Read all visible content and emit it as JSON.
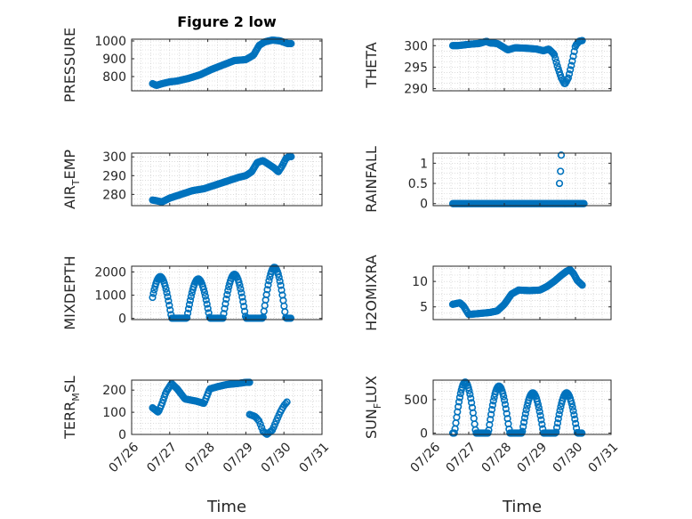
{
  "figure_title": "Figure 2 low",
  "xlabel": "Time",
  "x_tick_labels": [
    "07/26",
    "07/27",
    "07/28",
    "07/29",
    "07/30",
    "07/31"
  ],
  "colors": {
    "marker": "#0072BD",
    "grid": "#c8c8c8",
    "axis": "#262626"
  },
  "chart_data": [
    {
      "type": "scatter",
      "title": "Figure 2 low",
      "ylabel": "PRESSURE",
      "ylabel_sub": "",
      "xlim": [
        0,
        5
      ],
      "ylim": [
        720,
        1010
      ],
      "yticks": [
        800,
        900,
        1000
      ],
      "grid": true,
      "anchors": [
        [
          0.55,
          760
        ],
        [
          0.65,
          750
        ],
        [
          0.8,
          760
        ],
        [
          1.0,
          770
        ],
        [
          1.2,
          775
        ],
        [
          1.5,
          790
        ],
        [
          1.8,
          810
        ],
        [
          2.1,
          840
        ],
        [
          2.4,
          865
        ],
        [
          2.7,
          890
        ],
        [
          3.0,
          895
        ],
        [
          3.2,
          920
        ],
        [
          3.35,
          975
        ],
        [
          3.5,
          995
        ],
        [
          3.7,
          1005
        ],
        [
          3.9,
          1000
        ],
        [
          4.1,
          985
        ],
        [
          4.2,
          985
        ]
      ]
    },
    {
      "type": "scatter",
      "title": "",
      "ylabel": "THETA",
      "ylabel_sub": "",
      "xlim": [
        0,
        5
      ],
      "ylim": [
        289.5,
        301.5
      ],
      "yticks": [
        290,
        295,
        300
      ],
      "grid": true,
      "anchors": [
        [
          0.55,
          300
        ],
        [
          0.7,
          300
        ],
        [
          1.0,
          300.3
        ],
        [
          1.3,
          300.5
        ],
        [
          1.5,
          301
        ],
        [
          1.6,
          300.6
        ],
        [
          1.8,
          300.5
        ],
        [
          2.0,
          299.5
        ],
        [
          2.1,
          299
        ],
        [
          2.3,
          299.5
        ],
        [
          2.6,
          299.4
        ],
        [
          2.9,
          299.2
        ],
        [
          3.1,
          298.8
        ],
        [
          3.25,
          299.2
        ],
        [
          3.4,
          298
        ],
        [
          3.5,
          295
        ],
        [
          3.6,
          292.5
        ],
        [
          3.7,
          291
        ],
        [
          3.8,
          292.5
        ],
        [
          3.9,
          296
        ],
        [
          4.0,
          300
        ],
        [
          4.1,
          301
        ],
        [
          4.2,
          301.2
        ]
      ]
    },
    {
      "type": "scatter",
      "title": "",
      "ylabel": "AIR",
      "ylabel_sub": "T",
      "ylabel_suffix": "EMP",
      "xlim": [
        0,
        5
      ],
      "ylim": [
        274,
        302
      ],
      "yticks": [
        280,
        290,
        300
      ],
      "grid": true,
      "anchors": [
        [
          0.55,
          277
        ],
        [
          0.8,
          276
        ],
        [
          1.0,
          278
        ],
        [
          1.3,
          280
        ],
        [
          1.6,
          282
        ],
        [
          1.9,
          283
        ],
        [
          2.2,
          285
        ],
        [
          2.5,
          287
        ],
        [
          2.8,
          289
        ],
        [
          3.0,
          290
        ],
        [
          3.15,
          292
        ],
        [
          3.3,
          297
        ],
        [
          3.45,
          298
        ],
        [
          3.6,
          296
        ],
        [
          3.75,
          294
        ],
        [
          3.85,
          292
        ],
        [
          3.95,
          295
        ],
        [
          4.05,
          299
        ],
        [
          4.15,
          300.5
        ],
        [
          4.2,
          300
        ]
      ]
    },
    {
      "type": "scatter",
      "title": "",
      "ylabel": "RAINFALL",
      "ylabel_sub": "",
      "xlim": [
        0,
        5
      ],
      "ylim": [
        -0.05,
        1.25
      ],
      "yticks": [
        0,
        0.5,
        1
      ],
      "grid": true,
      "zero_range": [
        0.55,
        4.25
      ],
      "extra_points": [
        [
          3.55,
          0.5
        ],
        [
          3.58,
          0.8
        ],
        [
          3.6,
          1.2
        ]
      ]
    },
    {
      "type": "scatter",
      "title": "",
      "ylabel": "MIXDEPTH",
      "ylabel_sub": "",
      "xlim": [
        0,
        5
      ],
      "ylim": [
        -50,
        2250
      ],
      "yticks": [
        0,
        1000,
        2000
      ],
      "grid": true,
      "cycle": {
        "peaks": [
          0.75,
          1.75,
          2.7,
          3.75
        ],
        "peak_values": [
          1800,
          1700,
          1900,
          2200
        ],
        "night_value": 10
      }
    },
    {
      "type": "scatter",
      "title": "",
      "ylabel": "H2OMIXRA",
      "ylabel_sub": "",
      "xlim": [
        0,
        5
      ],
      "ylim": [
        2.5,
        13
      ],
      "yticks": [
        5,
        10
      ],
      "grid": true,
      "anchors": [
        [
          0.55,
          5.5
        ],
        [
          0.75,
          5.8
        ],
        [
          0.85,
          5.2
        ],
        [
          1.0,
          3.5
        ],
        [
          1.3,
          3.7
        ],
        [
          1.6,
          3.9
        ],
        [
          1.8,
          4.2
        ],
        [
          2.0,
          5.5
        ],
        [
          2.2,
          7.5
        ],
        [
          2.4,
          8.3
        ],
        [
          2.7,
          8.2
        ],
        [
          3.0,
          8.3
        ],
        [
          3.2,
          9.0
        ],
        [
          3.4,
          10.0
        ],
        [
          3.6,
          11.2
        ],
        [
          3.75,
          12.0
        ],
        [
          3.85,
          12.3
        ],
        [
          3.95,
          11.5
        ],
        [
          4.05,
          10.2
        ],
        [
          4.2,
          9.2
        ]
      ]
    },
    {
      "type": "scatter",
      "title": "",
      "ylabel": "TERR",
      "ylabel_sub": "M",
      "ylabel_suffix": "SL",
      "xlim": [
        0,
        5
      ],
      "ylim": [
        0,
        245
      ],
      "yticks": [
        0,
        100,
        200
      ],
      "grid": true,
      "anchors": [
        [
          0.55,
          120
        ],
        [
          0.7,
          100
        ],
        [
          0.8,
          140
        ],
        [
          0.9,
          190
        ],
        [
          1.05,
          230
        ],
        [
          1.2,
          205
        ],
        [
          1.4,
          160
        ],
        [
          1.7,
          150
        ],
        [
          1.9,
          140
        ],
        [
          2.05,
          205
        ],
        [
          2.25,
          215
        ],
        [
          2.5,
          225
        ],
        [
          2.8,
          230
        ],
        [
          3.0,
          235
        ],
        [
          3.1,
          235
        ]
      ],
      "anchors2": [
        [
          3.1,
          90
        ],
        [
          3.25,
          80
        ],
        [
          3.35,
          60
        ],
        [
          3.45,
          15
        ],
        [
          3.55,
          0
        ],
        [
          3.7,
          20
        ],
        [
          3.8,
          60
        ],
        [
          3.9,
          100
        ],
        [
          4.0,
          130
        ],
        [
          4.1,
          150
        ]
      ]
    },
    {
      "type": "scatter",
      "title": "",
      "ylabel": "SUN",
      "ylabel_sub": "F",
      "ylabel_suffix": "LUX",
      "xlim": [
        0,
        5
      ],
      "ylim": [
        -20,
        790
      ],
      "yticks": [
        0,
        500
      ],
      "grid": true,
      "cycle": {
        "peaks": [
          0.9,
          1.85,
          2.8,
          3.75
        ],
        "peak_values": [
          760,
          700,
          600,
          600
        ],
        "night_value": 0
      }
    }
  ]
}
